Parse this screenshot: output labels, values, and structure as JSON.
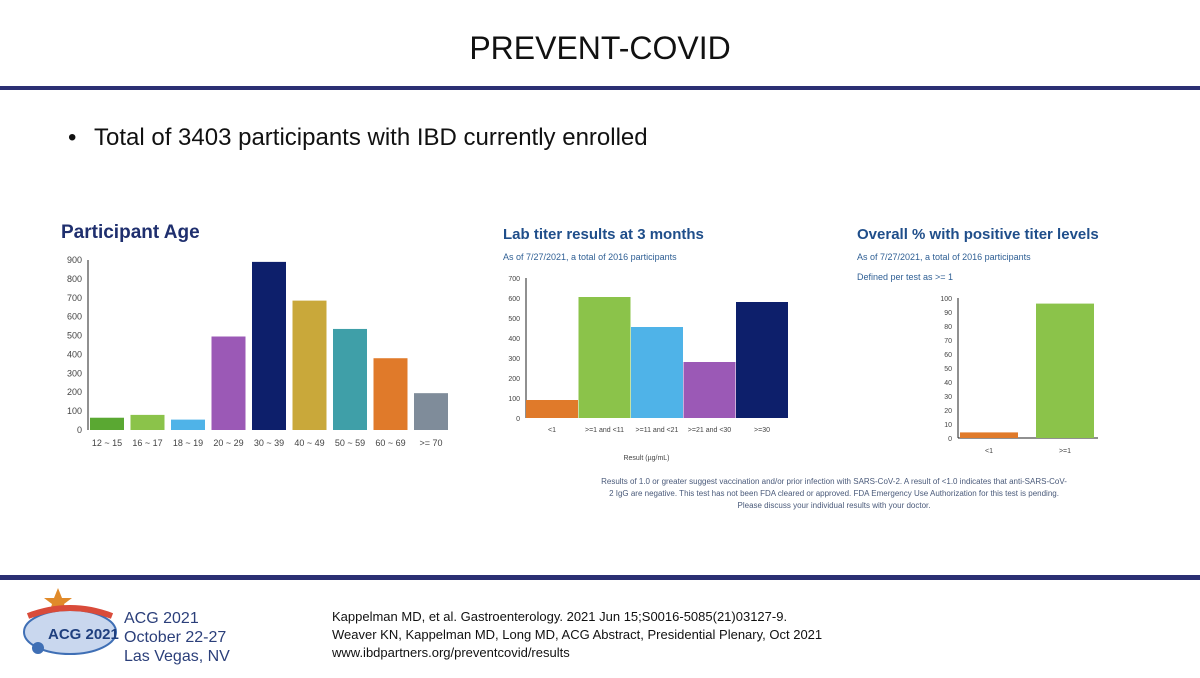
{
  "slide": {
    "title": "PREVENT-COVID",
    "bullet": "Total of 3403 participants with IBD currently enrolled"
  },
  "chart_data": [
    {
      "type": "bar",
      "title": "Participant Age",
      "categories": [
        "12 ~ 15",
        "16 ~ 17",
        "18 ~ 19",
        "20 ~ 29",
        "30 ~ 39",
        "40 ~ 49",
        "50 ~ 59",
        "60 ~ 69",
        ">= 70"
      ],
      "values": [
        65,
        80,
        55,
        495,
        890,
        685,
        535,
        380,
        195
      ],
      "colors": [
        "#5aa832",
        "#8bc34a",
        "#4fb3e8",
        "#9b59b6",
        "#0d1f6b",
        "#c9a83a",
        "#3f9fa8",
        "#e07a2a",
        "#7f8c9a"
      ],
      "yticks": [
        0,
        100,
        200,
        300,
        400,
        500,
        600,
        700,
        800,
        900
      ],
      "ylim": [
        0,
        900
      ],
      "xlabel": "",
      "ylabel": ""
    },
    {
      "type": "bar",
      "title": "Lab titer results at 3 months",
      "subtitle": "As of 7/27/2021, a total of 2016 participants",
      "categories": [
        "<1",
        ">=1 and <11",
        ">=11 and <21",
        ">=21 and <30",
        ">=30"
      ],
      "values": [
        90,
        605,
        455,
        280,
        580
      ],
      "colors": [
        "#e07a2a",
        "#8bc34a",
        "#4fb3e8",
        "#9b59b6",
        "#0d1f6b"
      ],
      "yticks": [
        0,
        100,
        200,
        300,
        400,
        500,
        600,
        700
      ],
      "ylim": [
        0,
        700
      ],
      "xlabel": "Result (µg/mL)",
      "ylabel": ""
    },
    {
      "type": "bar",
      "title": "Overall % with positive titer levels",
      "subtitle": "As of 7/27/2021, a total of 2016 participants",
      "subtitle2": "Defined per test as >= 1",
      "categories": [
        "<1",
        ">=1"
      ],
      "values": [
        4,
        96
      ],
      "colors": [
        "#e07a2a",
        "#8bc34a"
      ],
      "yticks": [
        0,
        10,
        20,
        30,
        40,
        50,
        60,
        70,
        80,
        90,
        100
      ],
      "ylim": [
        0,
        100
      ],
      "xlabel": "",
      "ylabel": ""
    }
  ],
  "footnote": "Results of 1.0 or greater suggest vaccination and/or prior infection with SARS-CoV-2. A result of <1.0 indicates that anti-SARS-CoV-2 IgG are negative. This test has not been FDA cleared or approved. FDA Emergency Use Authorization for this test is pending. Please discuss your individual results with your doctor.",
  "references": [
    "Kappelman MD, et al. Gastroenterology. 2021 Jun 15;S0016-5085(21)03127-9.",
    "Weaver KN, Kappelman MD, Long MD, ACG Abstract, Presidential Plenary, Oct 2021",
    "www.ibdpartners.org/preventcovid/results"
  ],
  "logo": {
    "badge": "ACG 2021",
    "line1": "ACG 2021",
    "line2": "October 22-27",
    "line3": "Las Vegas, NV"
  },
  "colors": {
    "rule": "#2b2f73",
    "title_blue": "#1f2f6e"
  }
}
